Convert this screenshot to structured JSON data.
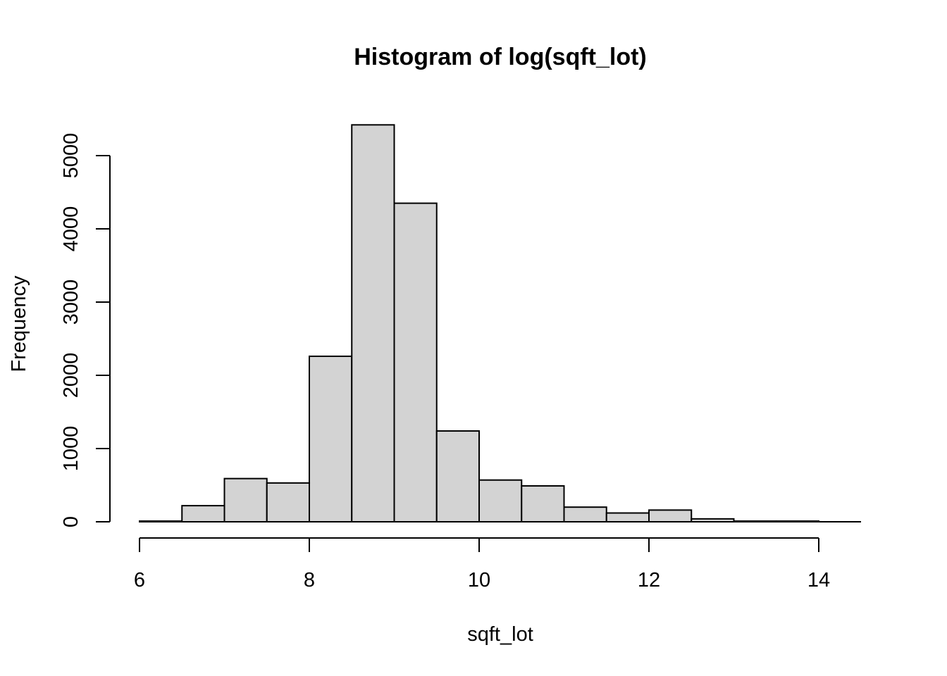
{
  "chart_data": {
    "type": "bar",
    "title": "Histogram of log(sqft_lot)",
    "xlabel": "sqft_lot",
    "ylabel": "Frequency",
    "bin_edges": [
      6,
      6.5,
      7,
      7.5,
      8,
      8.5,
      9,
      9.5,
      10,
      10.5,
      11,
      11.5,
      12,
      12.5,
      13,
      13.5,
      14,
      14.5
    ],
    "values": [
      10,
      220,
      590,
      530,
      2260,
      5420,
      4350,
      1240,
      570,
      490,
      200,
      120,
      160,
      40,
      10,
      10,
      0
    ],
    "xlim": [
      6,
      14.5
    ],
    "ylim": [
      0,
      5420
    ],
    "x_ticks": [
      6,
      8,
      10,
      12,
      14
    ],
    "y_ticks": [
      0,
      1000,
      2000,
      3000,
      4000,
      5000
    ],
    "x_tick_labels": [
      "6",
      "8",
      "10",
      "12",
      "14"
    ],
    "y_tick_labels": [
      "0",
      "1000",
      "2000",
      "3000",
      "4000",
      "5000"
    ],
    "bar_fill": "#d3d3d3",
    "bar_stroke": "#000000",
    "grid": false,
    "legend": "none"
  }
}
